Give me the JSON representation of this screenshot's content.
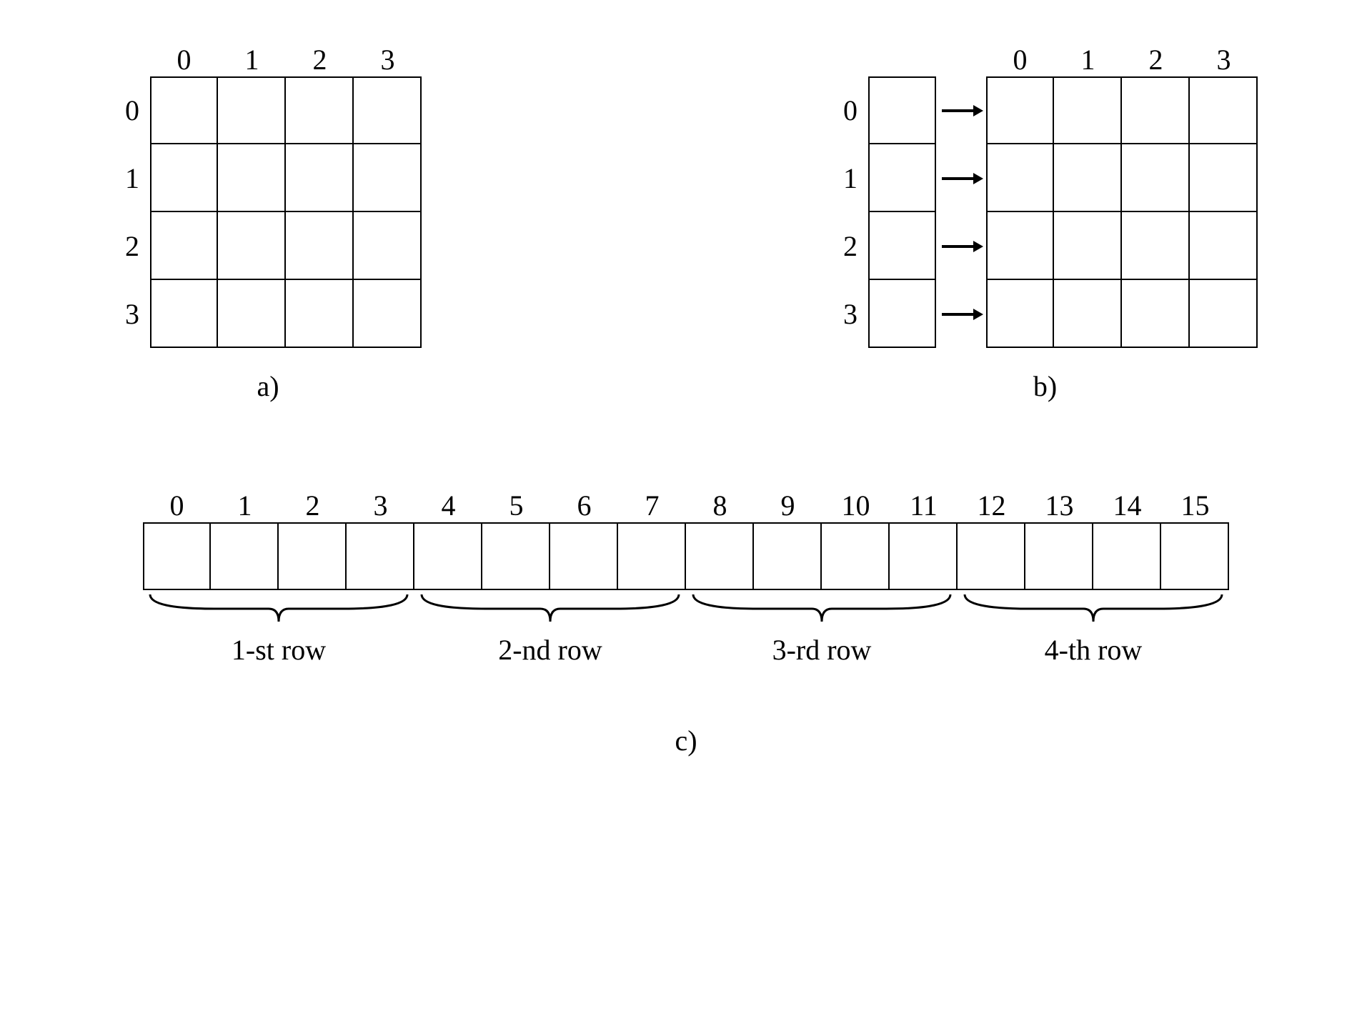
{
  "layout": {
    "background_color": "#ffffff",
    "stroke_color": "#000000",
    "stroke_width": 2,
    "font_family": "Georgia, 'Times New Roman', serif",
    "label_fontsize": 40,
    "cell_size_top": 95,
    "cell_size_bottom_w": 95,
    "cell_size_bottom_h": 95
  },
  "panel_a": {
    "caption": "a)",
    "col_labels": [
      "0",
      "1",
      "2",
      "3"
    ],
    "row_labels": [
      "0",
      "1",
      "2",
      "3"
    ],
    "rows": 4,
    "cols": 4
  },
  "panel_b": {
    "caption": "b)",
    "col_labels": [
      "0",
      "1",
      "2",
      "3"
    ],
    "row_labels": [
      "0",
      "1",
      "2",
      "3"
    ],
    "rows": 4,
    "cols": 4,
    "extra_col_rows": 4,
    "arrow_count": 4
  },
  "panel_c": {
    "caption": "c)",
    "index_labels": [
      "0",
      "1",
      "2",
      "3",
      "4",
      "5",
      "6",
      "7",
      "8",
      "9",
      "10",
      "11",
      "12",
      "13",
      "14",
      "15"
    ],
    "cells": 16,
    "groups": [
      {
        "span": 4,
        "label": "1-st row"
      },
      {
        "span": 4,
        "label": "2-nd row"
      },
      {
        "span": 4,
        "label": "3-rd row"
      },
      {
        "span": 4,
        "label": "4-th row"
      }
    ]
  }
}
